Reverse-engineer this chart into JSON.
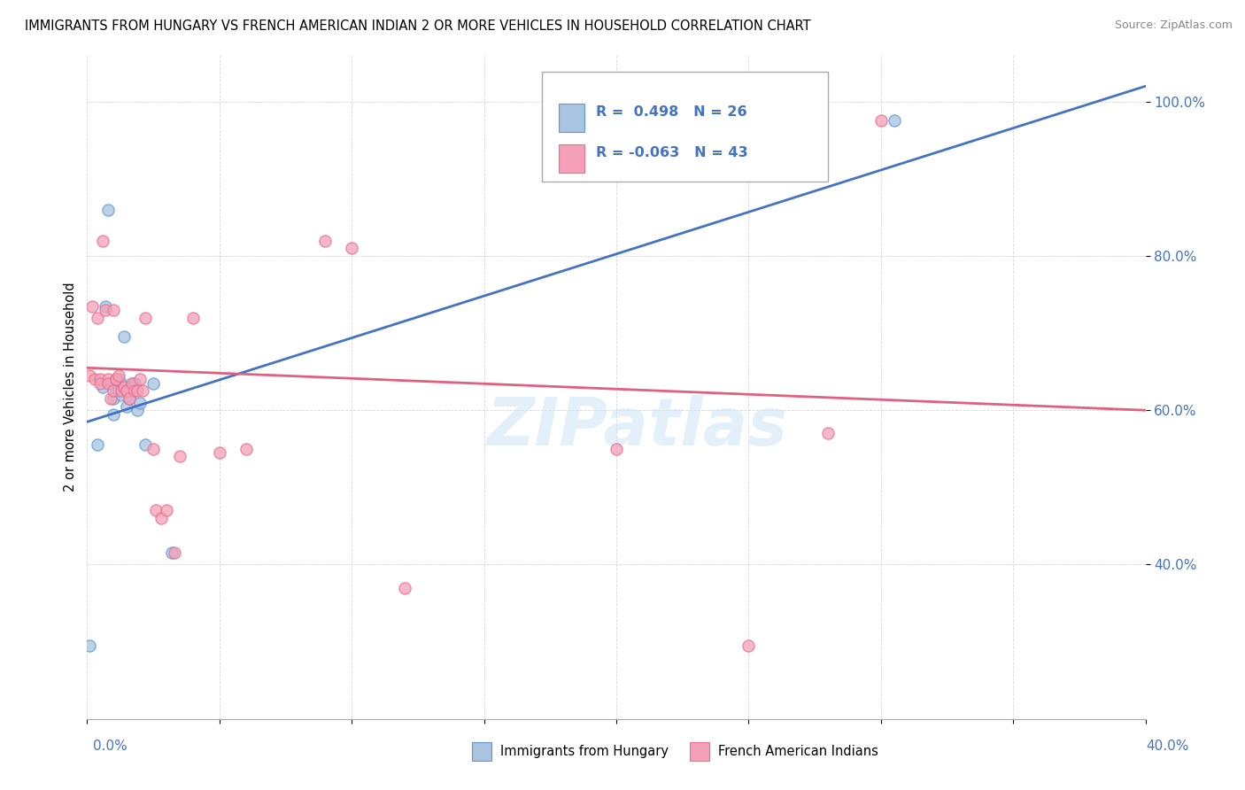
{
  "title": "IMMIGRANTS FROM HUNGARY VS FRENCH AMERICAN INDIAN 2 OR MORE VEHICLES IN HOUSEHOLD CORRELATION CHART",
  "source": "Source: ZipAtlas.com",
  "ylabel": "2 or more Vehicles in Household",
  "yticks": [
    0.4,
    0.6,
    0.8,
    1.0
  ],
  "ytick_labels": [
    "40.0%",
    "60.0%",
    "80.0%",
    "100.0%"
  ],
  "xrange": [
    0.0,
    0.4
  ],
  "yrange": [
    0.2,
    1.06
  ],
  "blue_R": 0.498,
  "blue_N": 26,
  "pink_R": -0.063,
  "pink_N": 43,
  "legend_label_blue": "Immigrants from Hungary",
  "legend_label_pink": "French American Indians",
  "blue_color": "#a8c4e0",
  "pink_color": "#f4a0b8",
  "blue_edge_color": "#5b9bd5",
  "pink_edge_color": "#e87090",
  "blue_line_color": "#4472c4",
  "pink_line_color": "#e06080",
  "watermark": "ZIPatlas",
  "blue_scatter_x": [
    0.001,
    0.004,
    0.006,
    0.007,
    0.008,
    0.009,
    0.01,
    0.01,
    0.011,
    0.012,
    0.012,
    0.013,
    0.013,
    0.014,
    0.015,
    0.015,
    0.016,
    0.016,
    0.017,
    0.018,
    0.019,
    0.02,
    0.022,
    0.025,
    0.032,
    0.305
  ],
  "blue_scatter_y": [
    0.295,
    0.555,
    0.63,
    0.735,
    0.86,
    0.635,
    0.615,
    0.595,
    0.625,
    0.625,
    0.64,
    0.62,
    0.635,
    0.695,
    0.605,
    0.625,
    0.625,
    0.615,
    0.635,
    0.635,
    0.6,
    0.61,
    0.555,
    0.635,
    0.415,
    0.975
  ],
  "pink_scatter_x": [
    0.001,
    0.002,
    0.003,
    0.004,
    0.005,
    0.005,
    0.006,
    0.007,
    0.008,
    0.008,
    0.009,
    0.01,
    0.01,
    0.011,
    0.011,
    0.012,
    0.013,
    0.014,
    0.015,
    0.015,
    0.016,
    0.017,
    0.018,
    0.019,
    0.02,
    0.021,
    0.022,
    0.025,
    0.026,
    0.028,
    0.03,
    0.033,
    0.035,
    0.04,
    0.05,
    0.06,
    0.09,
    0.1,
    0.12,
    0.2,
    0.25,
    0.28,
    0.3
  ],
  "pink_scatter_y": [
    0.645,
    0.735,
    0.64,
    0.72,
    0.64,
    0.635,
    0.82,
    0.73,
    0.64,
    0.635,
    0.615,
    0.625,
    0.73,
    0.64,
    0.64,
    0.645,
    0.625,
    0.63,
    0.625,
    0.625,
    0.615,
    0.635,
    0.625,
    0.625,
    0.64,
    0.625,
    0.72,
    0.55,
    0.47,
    0.46,
    0.47,
    0.415,
    0.54,
    0.72,
    0.545,
    0.55,
    0.82,
    0.81,
    0.37,
    0.55,
    0.295,
    0.57,
    0.975
  ]
}
